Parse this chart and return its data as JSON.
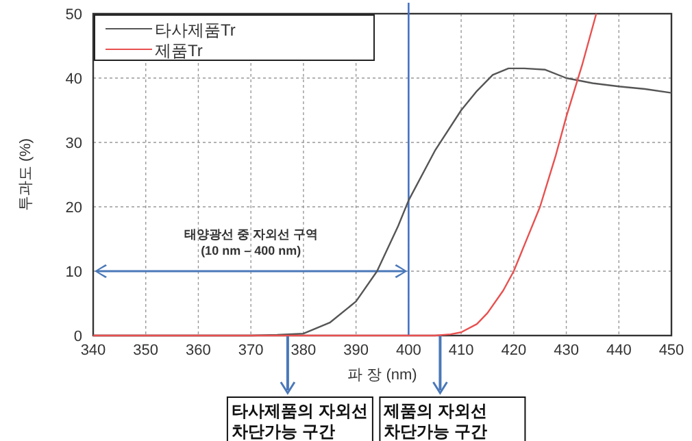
{
  "chart_data": {
    "type": "line",
    "xlabel": "파 장 (nm)",
    "ylabel": "투과도 (%)",
    "xlim": [
      340,
      450
    ],
    "ylim": [
      0,
      50
    ],
    "xticks": [
      340,
      350,
      360,
      370,
      380,
      390,
      400,
      410,
      420,
      430,
      440,
      450
    ],
    "yticks": [
      0,
      10,
      20,
      30,
      40,
      50
    ],
    "grid": true,
    "legend": "top left",
    "line_style": "solid",
    "marker": "none",
    "series": [
      {
        "name": "타사제품Tr",
        "color": "#555555",
        "x": [
          340,
          360,
          370,
          375,
          380,
          385,
          390,
          394,
          398,
          400,
          405,
          410,
          413,
          416,
          419,
          422,
          426,
          430,
          435,
          440,
          445,
          450
        ],
        "values": [
          0,
          0,
          0,
          0.1,
          0.3,
          2,
          5.3,
          10,
          17,
          21,
          28.7,
          35,
          38,
          40.5,
          41.5,
          41.5,
          41.3,
          40,
          39.2,
          38.7,
          38.3,
          37.7
        ]
      },
      {
        "name": "제품Tr",
        "color": "#e8504f",
        "x": [
          340,
          360,
          380,
          400,
          405,
          408,
          410,
          413,
          415,
          418,
          420,
          422,
          425,
          428,
          430,
          433,
          435.7
        ],
        "values": [
          0,
          0,
          0,
          0,
          0,
          0.2,
          0.5,
          1.8,
          3.5,
          7,
          10,
          14,
          20,
          28,
          34,
          42,
          50
        ]
      }
    ],
    "ref_lines": [
      {
        "axis": "x",
        "value": 400,
        "color": "#4472c4"
      }
    ],
    "annotations": [
      "태양광선 중 자외선 구역 (10 nm – 400 nm)",
      {
        "text": "타사제품의 자외선 차단가능 구간",
        "x": 377,
        "y": 0
      },
      {
        "text": "제품의 자외선 차단가능 구간",
        "x": 406,
        "y": 0
      }
    ]
  }
}
